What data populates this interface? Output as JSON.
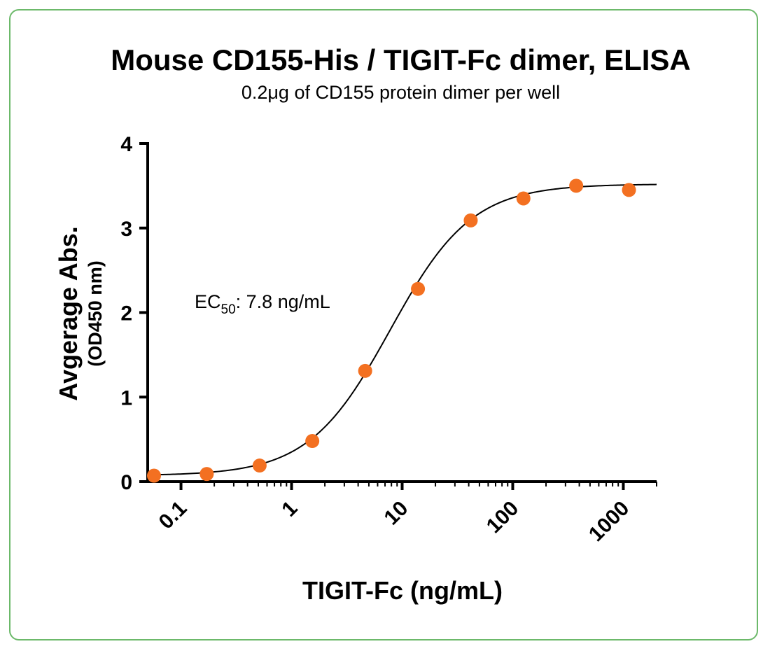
{
  "chart_data": {
    "type": "scatter",
    "title": "Mouse CD155-His / TIGIT-Fc dimer, ELISA",
    "subtitle": "0.2μg of CD155 protein dimer per well",
    "xlabel": "TIGIT-Fc (ng/mL)",
    "ylabel": "Avgerage Abs.",
    "ylabel_sub": "(OD450 nm)",
    "x_scale": "log",
    "xlim": [
      0.05,
      2000
    ],
    "ylim": [
      0,
      4
    ],
    "x_ticks": [
      "0.1",
      "1",
      "10",
      "100",
      "1000"
    ],
    "y_ticks": [
      "0",
      "1",
      "2",
      "3",
      "4"
    ],
    "grid": false,
    "annotation": {
      "prefix": "EC",
      "subscript": "50",
      "text": ": 7.8 ng/mL"
    },
    "series": [
      {
        "x": [
          0.057,
          0.171,
          0.514,
          1.54,
          4.63,
          13.9,
          41.7,
          125,
          375,
          1125
        ],
        "y": [
          0.07,
          0.09,
          0.19,
          0.48,
          1.31,
          2.28,
          3.09,
          3.35,
          3.5,
          3.45
        ]
      }
    ],
    "fit_curve": {
      "model": "4PL",
      "bottom": 0.07,
      "top": 3.52,
      "ec50": 7.8,
      "hill": 1.18
    },
    "colors": {
      "points": "#f37021",
      "curve": "#000000",
      "frame": "#6cb96a"
    }
  }
}
